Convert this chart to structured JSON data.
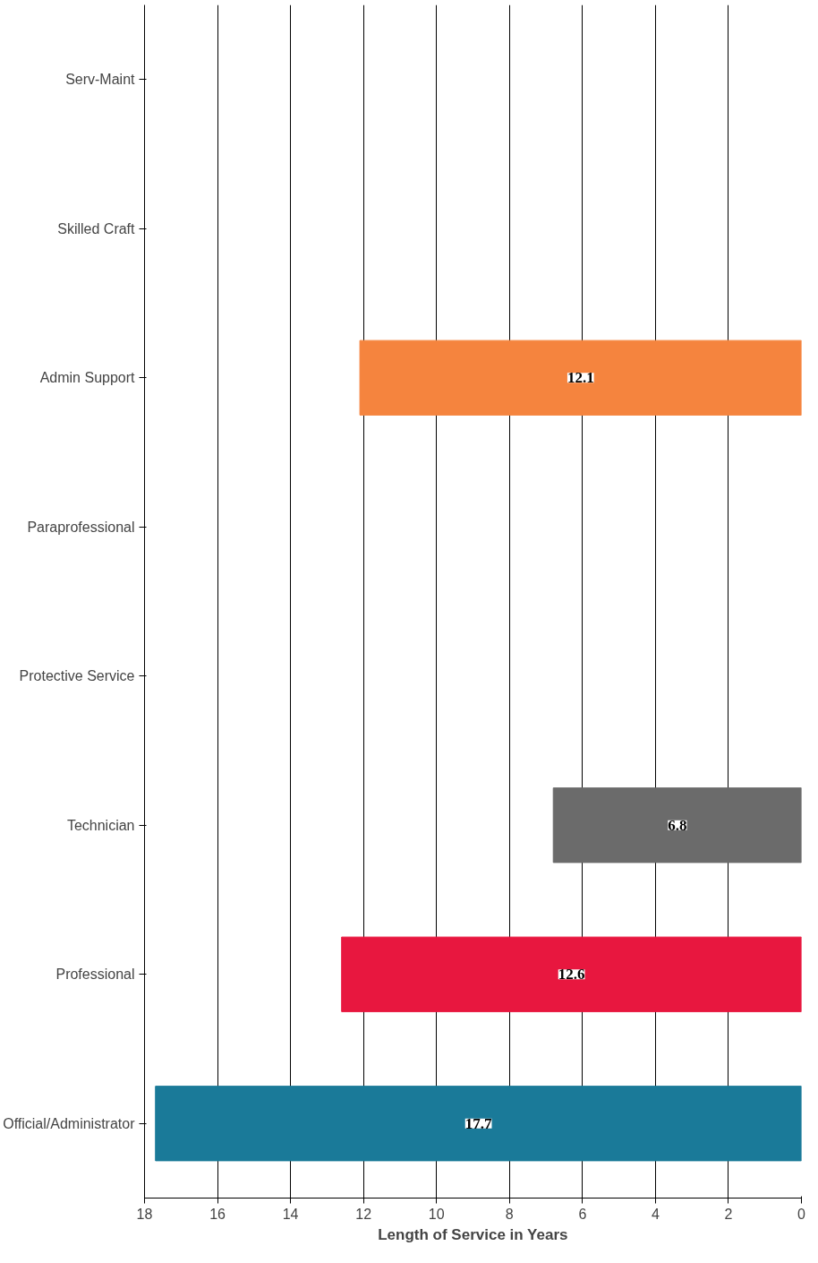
{
  "chart_data": {
    "type": "bar",
    "orientation": "horizontal",
    "xlabel": "Length of Service in Years",
    "categories": [
      "Serv-Maint",
      "Skilled Craft",
      "Admin Support",
      "Paraprofessional",
      "Protective Service",
      "Technician",
      "Professional",
      "Official/Administrator"
    ],
    "values": [
      null,
      null,
      12.1,
      null,
      null,
      6.8,
      12.6,
      17.7
    ],
    "colors": [
      "#1a7a99",
      "#1a7a99",
      "#f5843e",
      "#1a7a99",
      "#1a7a99",
      "#6b6b6b",
      "#e8173f",
      "#1a7a99"
    ],
    "xlim": [
      18,
      0
    ],
    "xticks": [
      0,
      2,
      4,
      6,
      8,
      10,
      12,
      14,
      16,
      18
    ],
    "grid": "x",
    "data_labels": true
  }
}
